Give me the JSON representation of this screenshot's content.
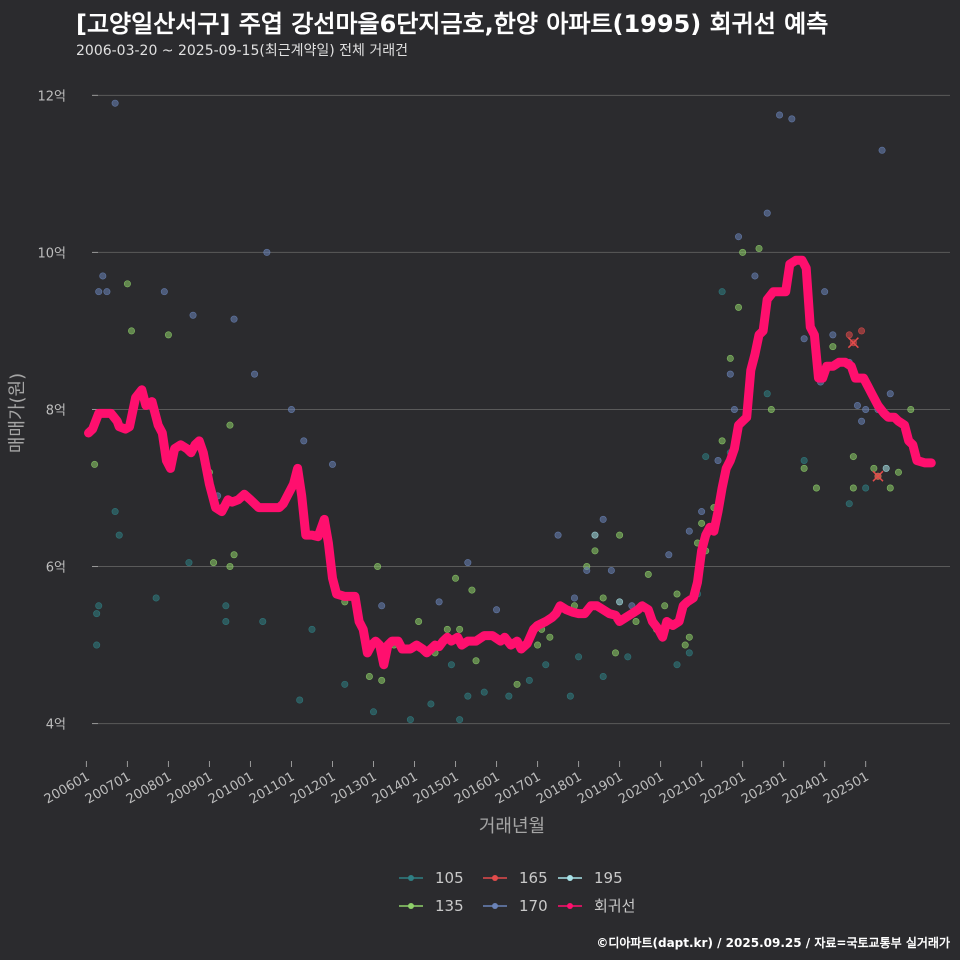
{
  "header": {
    "title": "[고양일산서구] 주엽 강선마을6단지금호,한양 아파트(1995) 회귀선 예측",
    "subtitle": "2006-03-20 ~ 2025-09-15(최근계약일) 전체 거래건"
  },
  "caption": "©디아파트(dapt.kr) / 2025.09.25 / 자료=국토교통부 실거래가",
  "colors": {
    "105": "#2f7f84",
    "135": "#8fd16a",
    "165": "#e24b4b",
    "170": "#6a83b8",
    "195": "#a8e3e8",
    "regression": "#ff0f6e",
    "grid": "#5a5a5a",
    "background": "#2b2b2e"
  },
  "chart_data": {
    "type": "scatter",
    "xlabel": "거래년월",
    "ylabel": "매매가(원)",
    "x_ticks": [
      "200601",
      "200701",
      "200801",
      "200901",
      "201001",
      "201101",
      "201201",
      "201301",
      "201401",
      "201501",
      "201601",
      "201701",
      "201801",
      "201901",
      "202001",
      "202101",
      "202201",
      "202301",
      "202401",
      "202501"
    ],
    "y_ticks": [
      {
        "value": 4,
        "label": "4억"
      },
      {
        "value": 6,
        "label": "6억"
      },
      {
        "value": 8,
        "label": "8억"
      },
      {
        "value": 10,
        "label": "10억"
      },
      {
        "value": 12,
        "label": "12억"
      }
    ],
    "xlim": [
      2005.6,
      2027.3
    ],
    "ylim": [
      3.6,
      12.45
    ],
    "y_unit": "억",
    "grid": true,
    "legend_position": "bottom",
    "legend": [
      "105",
      "165",
      "195",
      "135",
      "170",
      "회귀선"
    ],
    "series": [
      {
        "name": "105",
        "points": [
          [
            2006.25,
            5.0
          ],
          [
            2006.25,
            5.4
          ],
          [
            2006.3,
            5.5
          ],
          [
            2006.7,
            6.7
          ],
          [
            2006.8,
            6.4
          ],
          [
            2007.7,
            5.6
          ],
          [
            2008.5,
            6.05
          ],
          [
            2009.4,
            5.5
          ],
          [
            2009.4,
            5.3
          ],
          [
            2010.3,
            5.3
          ],
          [
            2011.2,
            4.3
          ],
          [
            2011.5,
            5.2
          ],
          [
            2012.3,
            4.5
          ],
          [
            2013.0,
            4.15
          ],
          [
            2013.9,
            4.05
          ],
          [
            2014.4,
            4.25
          ],
          [
            2014.9,
            4.75
          ],
          [
            2015.1,
            4.05
          ],
          [
            2015.3,
            4.35
          ],
          [
            2015.7,
            4.4
          ],
          [
            2016.3,
            4.35
          ],
          [
            2016.8,
            4.55
          ],
          [
            2017.2,
            4.75
          ],
          [
            2017.8,
            4.35
          ],
          [
            2018.0,
            4.85
          ],
          [
            2018.6,
            4.6
          ],
          [
            2019.2,
            4.85
          ],
          [
            2020.4,
            4.75
          ],
          [
            2020.7,
            4.9
          ],
          [
            2020.9,
            5.65
          ],
          [
            2021.1,
            7.4
          ],
          [
            2021.5,
            9.5
          ],
          [
            2021.7,
            7.45
          ],
          [
            2022.6,
            8.2
          ],
          [
            2023.5,
            7.35
          ],
          [
            2024.6,
            6.8
          ],
          [
            2025.0,
            7.0
          ]
        ]
      },
      {
        "name": "135",
        "points": [
          [
            2006.2,
            7.3
          ],
          [
            2007.0,
            9.6
          ],
          [
            2007.1,
            9.0
          ],
          [
            2008.0,
            8.95
          ],
          [
            2009.0,
            7.2
          ],
          [
            2009.3,
            6.75
          ],
          [
            2009.5,
            7.8
          ],
          [
            2009.6,
            6.15
          ],
          [
            2009.1,
            6.05
          ],
          [
            2009.5,
            6.0
          ],
          [
            2010.9,
            6.9
          ],
          [
            2012.3,
            5.55
          ],
          [
            2012.9,
            4.6
          ],
          [
            2013.1,
            6.0
          ],
          [
            2013.2,
            4.55
          ],
          [
            2013.5,
            5.0
          ],
          [
            2014.1,
            5.3
          ],
          [
            2014.5,
            4.9
          ],
          [
            2014.8,
            5.2
          ],
          [
            2015.0,
            5.85
          ],
          [
            2015.1,
            5.2
          ],
          [
            2015.4,
            5.7
          ],
          [
            2015.5,
            4.8
          ],
          [
            2016.5,
            4.5
          ],
          [
            2017.0,
            5.0
          ],
          [
            2017.1,
            5.2
          ],
          [
            2017.3,
            5.1
          ],
          [
            2017.9,
            5.5
          ],
          [
            2018.2,
            6.0
          ],
          [
            2018.4,
            6.2
          ],
          [
            2018.6,
            5.6
          ],
          [
            2018.9,
            4.9
          ],
          [
            2019.0,
            6.4
          ],
          [
            2019.4,
            5.3
          ],
          [
            2019.7,
            5.9
          ],
          [
            2019.9,
            5.2
          ],
          [
            2020.1,
            5.5
          ],
          [
            2020.4,
            5.65
          ],
          [
            2020.6,
            5.0
          ],
          [
            2020.7,
            5.1
          ],
          [
            2020.9,
            6.3
          ],
          [
            2021.0,
            6.55
          ],
          [
            2021.1,
            6.2
          ],
          [
            2021.3,
            6.75
          ],
          [
            2021.5,
            7.6
          ],
          [
            2021.7,
            8.65
          ],
          [
            2021.9,
            9.3
          ],
          [
            2022.0,
            10.0
          ],
          [
            2022.4,
            10.05
          ],
          [
            2022.7,
            8.0
          ],
          [
            2023.5,
            7.25
          ],
          [
            2023.8,
            7.0
          ],
          [
            2024.2,
            8.8
          ],
          [
            2024.7,
            7.4
          ],
          [
            2024.7,
            7.0
          ],
          [
            2025.2,
            7.25
          ],
          [
            2025.3,
            7.15
          ],
          [
            2025.6,
            7.0
          ],
          [
            2025.8,
            7.2
          ],
          [
            2026.1,
            8.0
          ]
        ]
      },
      {
        "name": "165",
        "points": [
          [
            2024.6,
            8.95
          ],
          [
            2024.7,
            8.85
          ],
          [
            2024.9,
            9.0
          ],
          [
            2025.3,
            7.15
          ]
        ]
      },
      {
        "name": "170",
        "points": [
          [
            2006.3,
            9.5
          ],
          [
            2006.4,
            9.7
          ],
          [
            2006.5,
            9.5
          ],
          [
            2006.7,
            11.9
          ],
          [
            2007.9,
            9.5
          ],
          [
            2008.6,
            9.2
          ],
          [
            2009.2,
            6.9
          ],
          [
            2009.6,
            9.15
          ],
          [
            2010.1,
            8.45
          ],
          [
            2010.4,
            10.0
          ],
          [
            2011.0,
            8.0
          ],
          [
            2011.3,
            7.6
          ],
          [
            2012.0,
            7.3
          ],
          [
            2013.2,
            5.5
          ],
          [
            2014.6,
            5.55
          ],
          [
            2015.3,
            6.05
          ],
          [
            2016.0,
            5.45
          ],
          [
            2017.5,
            6.4
          ],
          [
            2017.9,
            5.6
          ],
          [
            2018.2,
            5.95
          ],
          [
            2018.6,
            6.6
          ],
          [
            2018.8,
            5.95
          ],
          [
            2019.3,
            5.5
          ],
          [
            2020.2,
            6.15
          ],
          [
            2020.7,
            6.45
          ],
          [
            2021.0,
            6.7
          ],
          [
            2021.4,
            7.35
          ],
          [
            2021.7,
            8.45
          ],
          [
            2021.8,
            8.0
          ],
          [
            2021.9,
            10.2
          ],
          [
            2022.3,
            9.7
          ],
          [
            2022.6,
            10.5
          ],
          [
            2022.9,
            11.75
          ],
          [
            2023.2,
            11.7
          ],
          [
            2023.5,
            8.9
          ],
          [
            2023.9,
            8.35
          ],
          [
            2024.0,
            9.5
          ],
          [
            2024.2,
            8.95
          ],
          [
            2024.6,
            8.6
          ],
          [
            2024.8,
            8.05
          ],
          [
            2025.0,
            8.0
          ],
          [
            2024.9,
            7.85
          ],
          [
            2025.4,
            11.3
          ],
          [
            2025.3,
            8.0
          ],
          [
            2025.6,
            8.2
          ]
        ]
      },
      {
        "name": "195",
        "points": [
          [
            2018.4,
            6.4
          ],
          [
            2019.0,
            5.55
          ],
          [
            2025.5,
            7.25
          ]
        ]
      }
    ],
    "regression": {
      "name": "회귀선",
      "points": [
        [
          2006.05,
          7.7
        ],
        [
          2006.15,
          7.75
        ],
        [
          2006.3,
          7.95
        ],
        [
          2006.6,
          7.95
        ],
        [
          2006.75,
          7.85
        ],
        [
          2006.8,
          7.78
        ],
        [
          2006.95,
          7.75
        ],
        [
          2007.05,
          7.78
        ],
        [
          2007.2,
          8.15
        ],
        [
          2007.35,
          8.25
        ],
        [
          2007.45,
          8.05
        ],
        [
          2007.6,
          8.1
        ],
        [
          2007.75,
          7.8
        ],
        [
          2007.85,
          7.7
        ],
        [
          2007.95,
          7.35
        ],
        [
          2008.05,
          7.25
        ],
        [
          2008.15,
          7.5
        ],
        [
          2008.3,
          7.55
        ],
        [
          2008.45,
          7.5
        ],
        [
          2008.55,
          7.45
        ],
        [
          2008.65,
          7.55
        ],
        [
          2008.75,
          7.6
        ],
        [
          2008.85,
          7.45
        ],
        [
          2009.0,
          7.05
        ],
        [
          2009.15,
          6.75
        ],
        [
          2009.3,
          6.7
        ],
        [
          2009.45,
          6.85
        ],
        [
          2009.55,
          6.82
        ],
        [
          2009.7,
          6.85
        ],
        [
          2009.85,
          6.92
        ],
        [
          2010.0,
          6.85
        ],
        [
          2010.2,
          6.75
        ],
        [
          2010.4,
          6.75
        ],
        [
          2010.7,
          6.75
        ],
        [
          2010.8,
          6.8
        ],
        [
          2010.95,
          6.95
        ],
        [
          2011.05,
          7.05
        ],
        [
          2011.15,
          7.25
        ],
        [
          2011.25,
          6.9
        ],
        [
          2011.35,
          6.4
        ],
        [
          2011.5,
          6.4
        ],
        [
          2011.65,
          6.38
        ],
        [
          2011.8,
          6.6
        ],
        [
          2011.9,
          6.3
        ],
        [
          2012.0,
          5.85
        ],
        [
          2012.1,
          5.65
        ],
        [
          2012.3,
          5.62
        ],
        [
          2012.55,
          5.62
        ],
        [
          2012.65,
          5.3
        ],
        [
          2012.75,
          5.2
        ],
        [
          2012.85,
          4.9
        ],
        [
          2012.95,
          5.0
        ],
        [
          2013.05,
          5.05
        ],
        [
          2013.15,
          5.0
        ],
        [
          2013.25,
          4.75
        ],
        [
          2013.35,
          5.0
        ],
        [
          2013.45,
          5.05
        ],
        [
          2013.6,
          5.05
        ],
        [
          2013.7,
          4.95
        ],
        [
          2013.8,
          4.95
        ],
        [
          2013.9,
          4.95
        ],
        [
          2014.05,
          5.0
        ],
        [
          2014.2,
          4.95
        ],
        [
          2014.3,
          4.9
        ],
        [
          2014.4,
          4.95
        ],
        [
          2014.5,
          5.0
        ],
        [
          2014.6,
          4.98
        ],
        [
          2014.7,
          5.05
        ],
        [
          2014.8,
          5.1
        ],
        [
          2014.9,
          5.05
        ],
        [
          2015.05,
          5.1
        ],
        [
          2015.15,
          5.0
        ],
        [
          2015.3,
          5.05
        ],
        [
          2015.5,
          5.05
        ],
        [
          2015.7,
          5.12
        ],
        [
          2015.9,
          5.12
        ],
        [
          2016.1,
          5.05
        ],
        [
          2016.2,
          5.1
        ],
        [
          2016.35,
          5.0
        ],
        [
          2016.5,
          5.05
        ],
        [
          2016.6,
          4.95
        ],
        [
          2016.75,
          5.02
        ],
        [
          2016.9,
          5.2
        ],
        [
          2017.0,
          5.25
        ],
        [
          2017.2,
          5.3
        ],
        [
          2017.35,
          5.35
        ],
        [
          2017.45,
          5.4
        ],
        [
          2017.55,
          5.5
        ],
        [
          2017.7,
          5.45
        ],
        [
          2017.85,
          5.42
        ],
        [
          2018.0,
          5.4
        ],
        [
          2018.15,
          5.4
        ],
        [
          2018.3,
          5.5
        ],
        [
          2018.45,
          5.5
        ],
        [
          2018.6,
          5.45
        ],
        [
          2018.75,
          5.4
        ],
        [
          2018.9,
          5.38
        ],
        [
          2019.0,
          5.3
        ],
        [
          2019.15,
          5.35
        ],
        [
          2019.3,
          5.4
        ],
        [
          2019.45,
          5.45
        ],
        [
          2019.55,
          5.5
        ],
        [
          2019.7,
          5.45
        ],
        [
          2019.8,
          5.3
        ],
        [
          2019.95,
          5.2
        ],
        [
          2020.05,
          5.1
        ],
        [
          2020.15,
          5.3
        ],
        [
          2020.3,
          5.25
        ],
        [
          2020.45,
          5.3
        ],
        [
          2020.55,
          5.5
        ],
        [
          2020.65,
          5.55
        ],
        [
          2020.8,
          5.6
        ],
        [
          2020.9,
          5.8
        ],
        [
          2021.0,
          6.2
        ],
        [
          2021.1,
          6.4
        ],
        [
          2021.2,
          6.5
        ],
        [
          2021.3,
          6.45
        ],
        [
          2021.4,
          6.7
        ],
        [
          2021.5,
          7.0
        ],
        [
          2021.6,
          7.25
        ],
        [
          2021.7,
          7.35
        ],
        [
          2021.8,
          7.5
        ],
        [
          2021.9,
          7.8
        ],
        [
          2022.0,
          7.85
        ],
        [
          2022.1,
          7.9
        ],
        [
          2022.2,
          8.5
        ],
        [
          2022.3,
          8.7
        ],
        [
          2022.4,
          8.95
        ],
        [
          2022.5,
          9.0
        ],
        [
          2022.6,
          9.4
        ],
        [
          2022.75,
          9.5
        ],
        [
          2022.9,
          9.5
        ],
        [
          2023.05,
          9.5
        ],
        [
          2023.15,
          9.85
        ],
        [
          2023.3,
          9.9
        ],
        [
          2023.45,
          9.9
        ],
        [
          2023.55,
          9.8
        ],
        [
          2023.65,
          9.05
        ],
        [
          2023.75,
          8.95
        ],
        [
          2023.85,
          8.4
        ],
        [
          2023.95,
          8.4
        ],
        [
          2024.05,
          8.55
        ],
        [
          2024.2,
          8.55
        ],
        [
          2024.35,
          8.6
        ],
        [
          2024.5,
          8.6
        ],
        [
          2024.65,
          8.55
        ],
        [
          2024.75,
          8.4
        ],
        [
          2024.85,
          8.4
        ],
        [
          2024.95,
          8.4
        ],
        [
          2025.05,
          8.3
        ],
        [
          2025.15,
          8.2
        ],
        [
          2025.3,
          8.05
        ],
        [
          2025.45,
          7.95
        ],
        [
          2025.55,
          7.9
        ],
        [
          2025.7,
          7.9
        ],
        [
          2025.8,
          7.85
        ],
        [
          2025.95,
          7.8
        ],
        [
          2026.05,
          7.6
        ],
        [
          2026.15,
          7.55
        ],
        [
          2026.25,
          7.35
        ],
        [
          2026.45,
          7.32
        ],
        [
          2026.6,
          7.32
        ]
      ]
    },
    "highlights": [
      {
        "series": "165",
        "x": 2024.7,
        "y": 8.85
      },
      {
        "series": "165",
        "x": 2025.3,
        "y": 7.15
      }
    ]
  }
}
